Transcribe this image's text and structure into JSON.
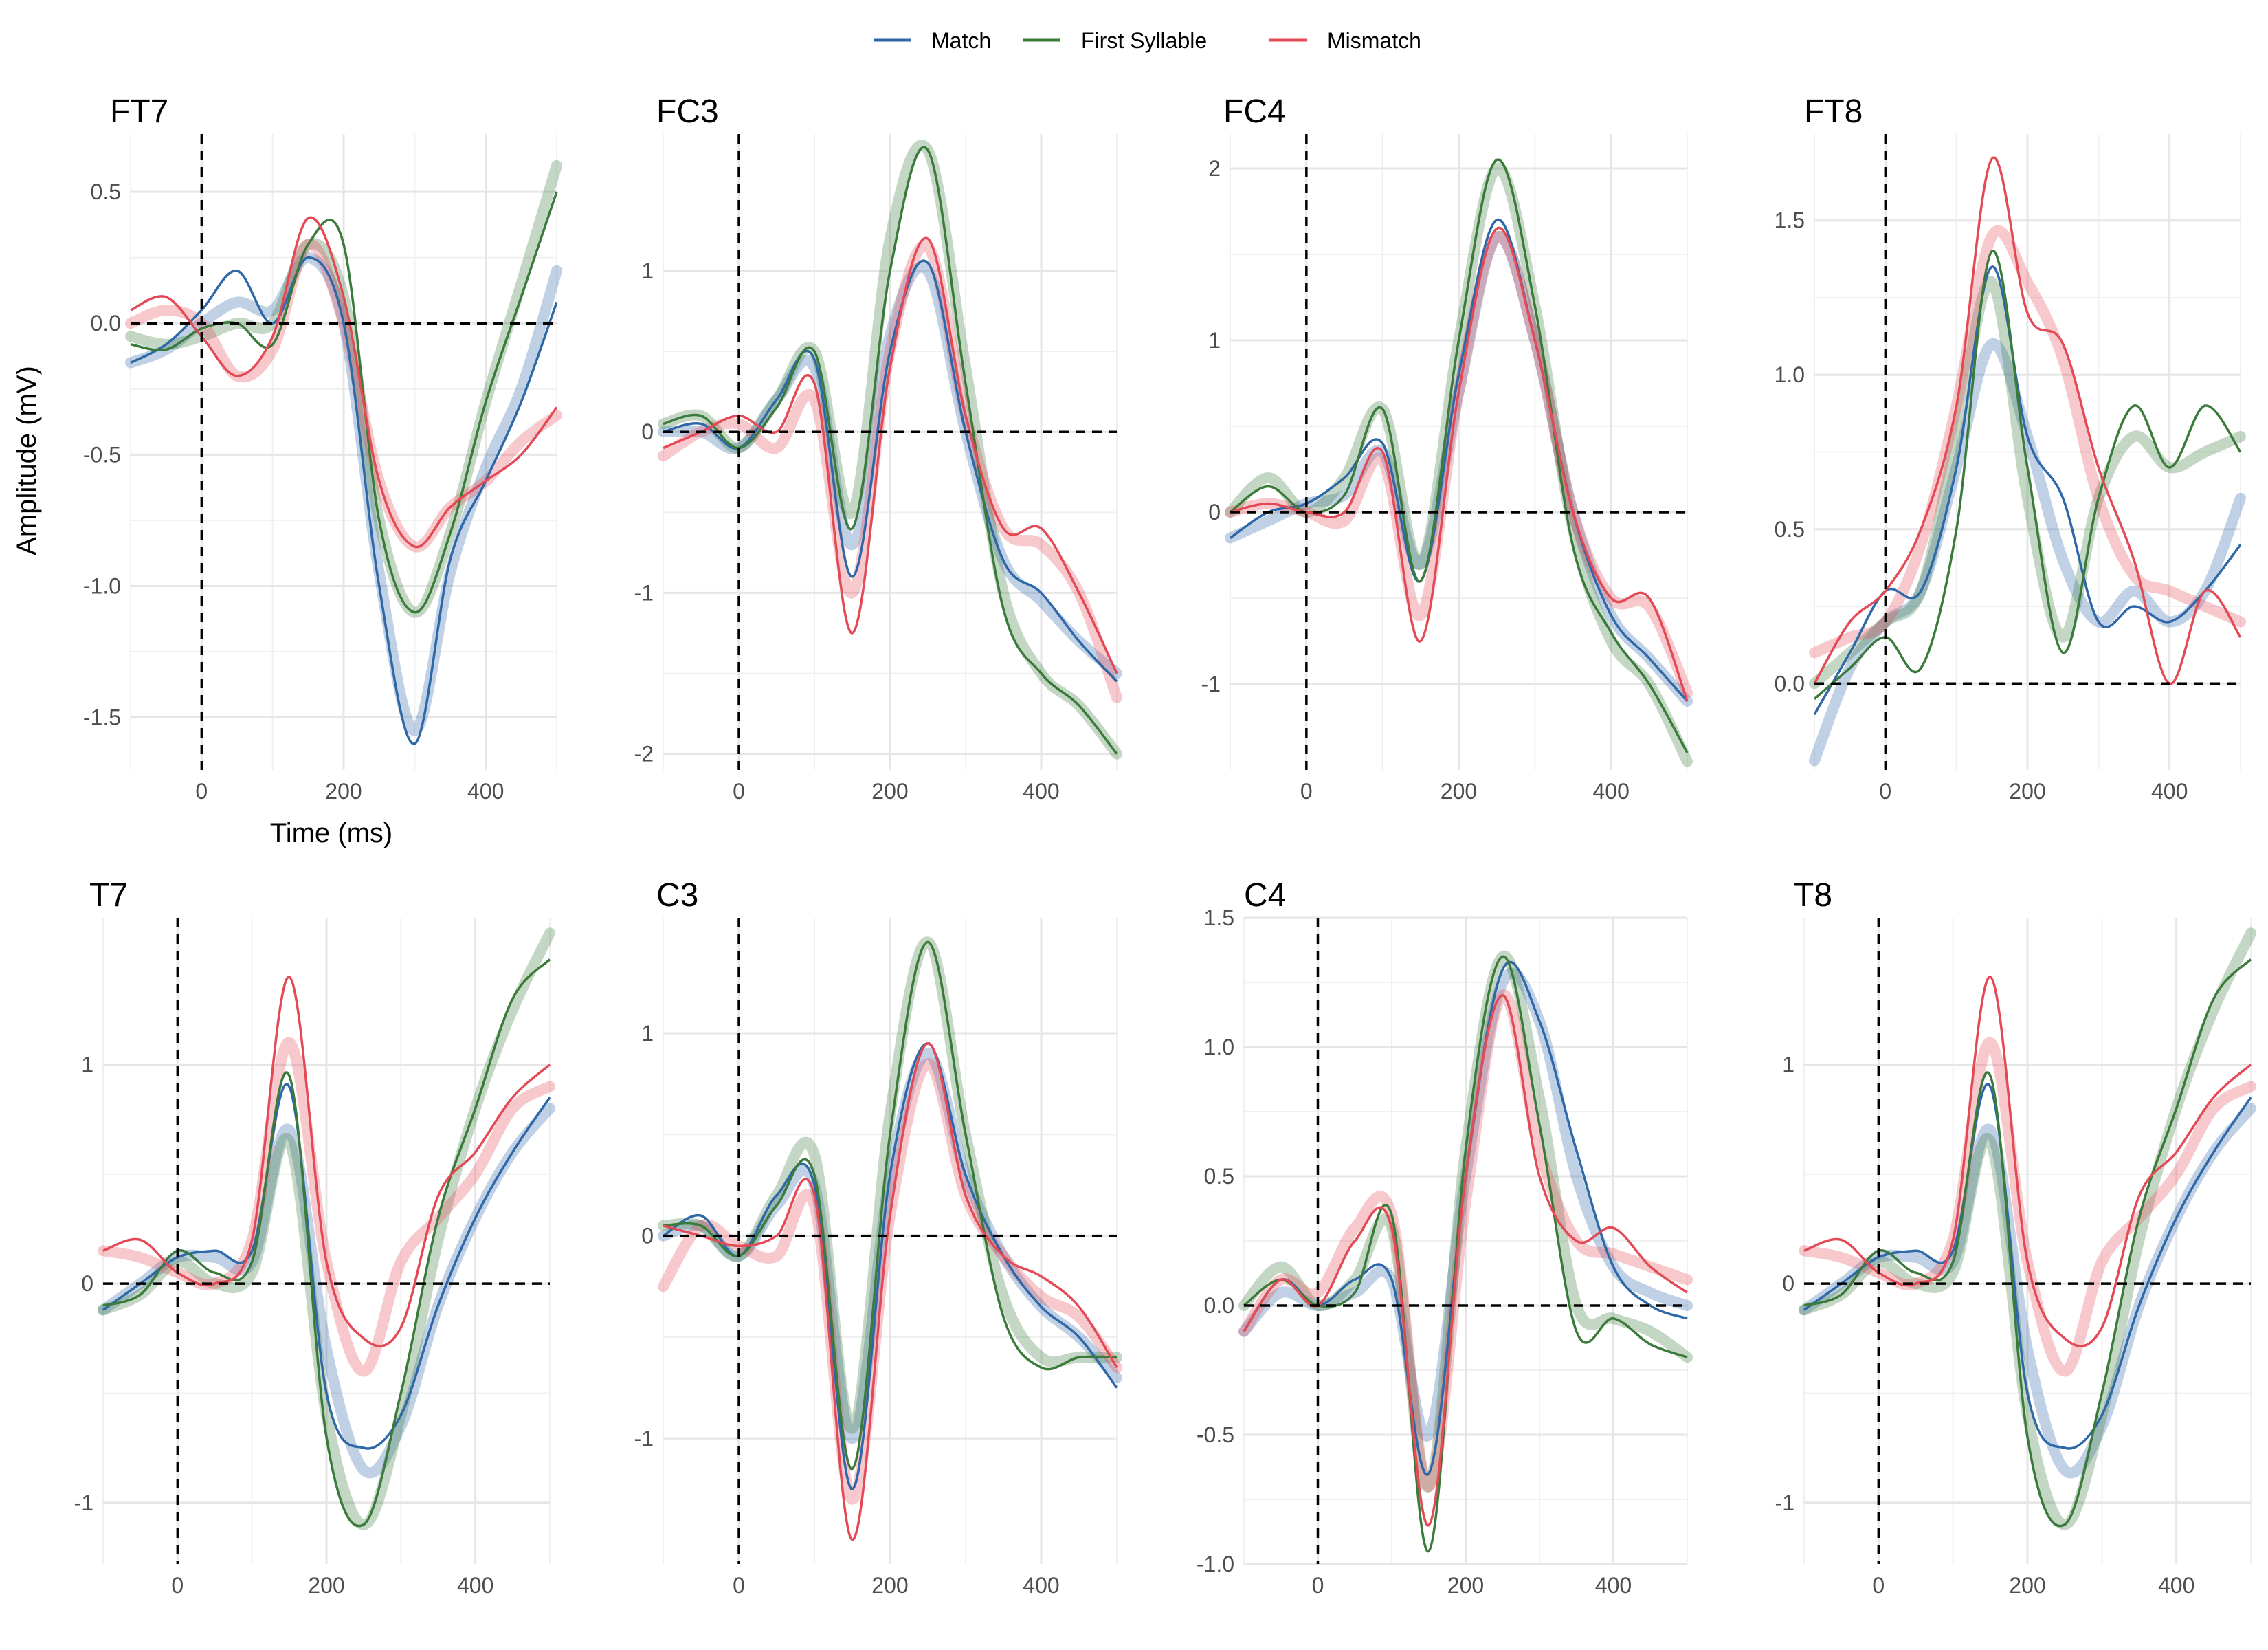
{
  "legend": {
    "items": [
      {
        "label": "Match",
        "color": "#2E68A8"
      },
      {
        "label": "First Syllable",
        "color": "#3A7A3A"
      },
      {
        "label": "Mismatch",
        "color": "#E34A55"
      }
    ]
  },
  "chart_data": [
    {
      "type": "line",
      "title": "FT7",
      "xlabel": "Time (ms)",
      "ylabel": "Amplitude (mV)",
      "xlim": [
        -100,
        500
      ],
      "ylim": [
        -1.7,
        0.72
      ],
      "xticks": [
        0,
        200,
        400
      ],
      "xtick_labels": [
        "0",
        "200",
        "400"
      ],
      "yticks": [
        0.5,
        0.0,
        -0.5,
        -1.0,
        -1.5
      ],
      "ytick_labels": [
        "0.5",
        "0.0",
        "-0.5",
        "-1.0",
        "-1.5"
      ],
      "x": [
        -100,
        -50,
        0,
        50,
        100,
        150,
        200,
        250,
        300,
        350,
        400,
        450,
        500
      ],
      "series": [
        {
          "name": "Match",
          "values": [
            -0.15,
            -0.08,
            0.05,
            0.2,
            0.0,
            0.25,
            0.0,
            -1.0,
            -1.6,
            -0.9,
            -0.6,
            -0.3,
            0.08
          ],
          "smooth": [
            -0.15,
            -0.1,
            0.0,
            0.08,
            0.05,
            0.25,
            0.0,
            -0.95,
            -1.55,
            -0.95,
            -0.55,
            -0.25,
            0.2
          ]
        },
        {
          "name": "First Syllable",
          "values": [
            -0.08,
            -0.1,
            -0.02,
            0.0,
            -0.08,
            0.3,
            0.3,
            -0.75,
            -1.1,
            -0.8,
            -0.3,
            0.1,
            0.5
          ],
          "smooth": [
            -0.05,
            -0.08,
            -0.05,
            0.0,
            0.0,
            0.3,
            0.1,
            -0.75,
            -1.1,
            -0.8,
            -0.3,
            0.15,
            0.6
          ]
        },
        {
          "name": "Mismatch",
          "values": [
            0.05,
            0.1,
            -0.05,
            -0.2,
            -0.05,
            0.4,
            0.1,
            -0.6,
            -0.85,
            -0.7,
            -0.6,
            -0.5,
            -0.32
          ],
          "smooth": [
            0.0,
            0.05,
            0.0,
            -0.2,
            -0.1,
            0.3,
            0.0,
            -0.6,
            -0.85,
            -0.7,
            -0.6,
            -0.45,
            -0.35
          ]
        }
      ]
    },
    {
      "type": "line",
      "title": "FC3",
      "xlabel": "",
      "ylabel": "",
      "xlim": [
        -100,
        500
      ],
      "ylim": [
        -2.1,
        1.85
      ],
      "xticks": [
        0,
        200,
        400
      ],
      "xtick_labels": [
        "0",
        "200",
        "400"
      ],
      "yticks": [
        1,
        0,
        -1,
        -2
      ],
      "ytick_labels": [
        "1",
        "0",
        "-1",
        "-2"
      ],
      "x": [
        -100,
        -50,
        0,
        50,
        100,
        150,
        200,
        250,
        300,
        350,
        400,
        450,
        500
      ],
      "series": [
        {
          "name": "Match",
          "values": [
            0.0,
            0.05,
            -0.1,
            0.2,
            0.45,
            -0.9,
            0.5,
            1.05,
            0.0,
            -0.8,
            -1.0,
            -1.3,
            -1.55
          ],
          "smooth": [
            0.0,
            0.0,
            -0.1,
            0.2,
            0.4,
            -0.7,
            0.6,
            1.0,
            0.0,
            -0.8,
            -1.05,
            -1.3,
            -1.5
          ]
        },
        {
          "name": "First Syllable",
          "values": [
            0.05,
            0.1,
            -0.1,
            0.15,
            0.5,
            -0.6,
            1.0,
            1.75,
            0.3,
            -1.1,
            -1.5,
            -1.7,
            -2.0
          ],
          "smooth": [
            0.05,
            0.1,
            -0.1,
            0.2,
            0.5,
            -0.5,
            1.2,
            1.75,
            0.4,
            -1.0,
            -1.5,
            -1.7,
            -2.0
          ]
        },
        {
          "name": "Mismatch",
          "values": [
            -0.1,
            0.0,
            0.1,
            0.0,
            0.3,
            -1.25,
            0.4,
            1.2,
            0.1,
            -0.6,
            -0.6,
            -1.0,
            -1.5
          ],
          "smooth": [
            -0.15,
            0.0,
            0.05,
            -0.1,
            0.2,
            -1.0,
            0.5,
            1.15,
            0.1,
            -0.6,
            -0.7,
            -1.0,
            -1.65
          ]
        }
      ]
    },
    {
      "type": "line",
      "title": "FC4",
      "xlabel": "",
      "ylabel": "",
      "xlim": [
        -100,
        500
      ],
      "ylim": [
        -1.5,
        2.2
      ],
      "xticks": [
        0,
        200,
        400
      ],
      "xtick_labels": [
        "0",
        "200",
        "400"
      ],
      "yticks": [
        2,
        1,
        0,
        -1
      ],
      "ytick_labels": [
        "2",
        "1",
        "0",
        "-1"
      ],
      "x": [
        -100,
        -50,
        0,
        50,
        100,
        150,
        200,
        250,
        300,
        350,
        400,
        450,
        500
      ],
      "series": [
        {
          "name": "Match",
          "values": [
            -0.15,
            0.0,
            0.05,
            0.2,
            0.4,
            -0.4,
            0.8,
            1.7,
            1.0,
            0.0,
            -0.6,
            -0.85,
            -1.1
          ],
          "smooth": [
            -0.15,
            -0.05,
            0.05,
            0.1,
            0.35,
            -0.3,
            0.7,
            1.6,
            1.0,
            0.0,
            -0.6,
            -0.85,
            -1.1
          ]
        },
        {
          "name": "First Syllable",
          "values": [
            0.0,
            0.15,
            0.0,
            0.1,
            0.6,
            -0.4,
            1.0,
            2.05,
            1.2,
            -0.2,
            -0.7,
            -1.0,
            -1.4
          ],
          "smooth": [
            0.0,
            0.2,
            0.0,
            0.2,
            0.6,
            -0.3,
            1.0,
            2.0,
            1.2,
            -0.1,
            -0.75,
            -1.0,
            -1.45
          ]
        },
        {
          "name": "Mismatch",
          "values": [
            0.0,
            0.05,
            0.0,
            0.0,
            0.35,
            -0.75,
            0.7,
            1.65,
            1.0,
            0.0,
            -0.5,
            -0.5,
            -1.1
          ],
          "smooth": [
            0.0,
            0.05,
            0.0,
            -0.05,
            0.3,
            -0.6,
            0.7,
            1.6,
            1.0,
            0.0,
            -0.5,
            -0.55,
            -1.05
          ]
        }
      ]
    },
    {
      "type": "line",
      "title": "FT8",
      "xlabel": "",
      "ylabel": "",
      "xlim": [
        -100,
        500
      ],
      "ylim": [
        -0.28,
        1.78
      ],
      "xticks": [
        0,
        200,
        400
      ],
      "xtick_labels": [
        "0",
        "200",
        "400"
      ],
      "yticks": [
        1.5,
        1.0,
        0.5,
        0.0
      ],
      "ytick_labels": [
        "1.5",
        "1.0",
        "0.5",
        "0.0"
      ],
      "x": [
        -100,
        -50,
        0,
        50,
        100,
        150,
        200,
        250,
        300,
        350,
        400,
        450,
        500
      ],
      "series": [
        {
          "name": "Match",
          "values": [
            -0.1,
            0.1,
            0.3,
            0.3,
            0.7,
            1.35,
            0.8,
            0.6,
            0.2,
            0.25,
            0.2,
            0.3,
            0.45
          ],
          "smooth": [
            -0.25,
            0.05,
            0.2,
            0.3,
            0.7,
            1.1,
            0.8,
            0.4,
            0.2,
            0.3,
            0.2,
            0.3,
            0.6
          ]
        },
        {
          "name": "First Syllable",
          "values": [
            -0.05,
            0.05,
            0.15,
            0.05,
            0.5,
            1.4,
            0.7,
            0.1,
            0.6,
            0.9,
            0.7,
            0.9,
            0.75
          ],
          "smooth": [
            0.0,
            0.1,
            0.2,
            0.3,
            0.8,
            1.3,
            0.6,
            0.15,
            0.6,
            0.8,
            0.7,
            0.75,
            0.8
          ]
        },
        {
          "name": "Mismatch",
          "values": [
            0.0,
            0.2,
            0.3,
            0.5,
            0.9,
            1.7,
            1.2,
            1.1,
            0.7,
            0.4,
            0.0,
            0.3,
            0.15
          ],
          "smooth": [
            0.1,
            0.15,
            0.2,
            0.45,
            0.9,
            1.45,
            1.3,
            1.05,
            0.6,
            0.35,
            0.3,
            0.25,
            0.2
          ]
        }
      ]
    },
    {
      "type": "line",
      "title": "T7",
      "xlabel": "",
      "ylabel": "",
      "xlim": [
        -100,
        500
      ],
      "ylim": [
        -1.28,
        1.67
      ],
      "xticks": [
        0,
        200,
        400
      ],
      "xtick_labels": [
        "0",
        "200",
        "400"
      ],
      "yticks": [
        1,
        0,
        -1
      ],
      "ytick_labels": [
        "1",
        "0",
        "-1"
      ],
      "x": [
        -100,
        -50,
        0,
        50,
        100,
        150,
        200,
        250,
        300,
        350,
        400,
        450,
        500
      ],
      "series": [
        {
          "name": "Match",
          "values": [
            -0.12,
            0.0,
            0.12,
            0.15,
            0.15,
            0.9,
            -0.5,
            -0.75,
            -0.6,
            -0.1,
            0.3,
            0.6,
            0.85
          ],
          "smooth": [
            -0.12,
            0.0,
            0.12,
            0.12,
            0.1,
            0.7,
            -0.3,
            -0.85,
            -0.65,
            -0.1,
            0.3,
            0.6,
            0.8
          ]
        },
        {
          "name": "First Syllable",
          "values": [
            -0.1,
            -0.05,
            0.15,
            0.05,
            0.1,
            0.95,
            -0.7,
            -1.1,
            -0.5,
            0.3,
            0.8,
            1.3,
            1.48
          ],
          "smooth": [
            -0.12,
            -0.05,
            0.1,
            0.0,
            0.05,
            0.65,
            -0.6,
            -1.1,
            -0.6,
            0.2,
            0.8,
            1.25,
            1.6
          ]
        },
        {
          "name": "Mismatch",
          "values": [
            0.15,
            0.2,
            0.05,
            0.0,
            0.2,
            1.4,
            0.1,
            -0.25,
            -0.2,
            0.4,
            0.6,
            0.85,
            1.0
          ],
          "smooth": [
            0.15,
            0.12,
            0.05,
            0.0,
            0.2,
            1.1,
            0.1,
            -0.4,
            0.1,
            0.3,
            0.5,
            0.8,
            0.9
          ]
        }
      ]
    },
    {
      "type": "line",
      "title": "C3",
      "xlabel": "",
      "ylabel": "",
      "xlim": [
        -100,
        500
      ],
      "ylim": [
        -1.62,
        1.57
      ],
      "xticks": [
        0,
        200,
        400
      ],
      "xtick_labels": [
        "0",
        "200",
        "400"
      ],
      "yticks": [
        1,
        0,
        -1
      ],
      "ytick_labels": [
        "1",
        "0",
        "-1"
      ],
      "x": [
        -100,
        -50,
        0,
        50,
        100,
        150,
        200,
        250,
        300,
        350,
        400,
        450,
        500
      ],
      "series": [
        {
          "name": "Match",
          "values": [
            0.0,
            0.1,
            -0.1,
            0.2,
            0.25,
            -1.25,
            0.3,
            0.95,
            0.3,
            -0.1,
            -0.35,
            -0.5,
            -0.75
          ],
          "smooth": [
            0.0,
            0.05,
            -0.1,
            0.15,
            0.25,
            -1.0,
            0.3,
            0.9,
            0.3,
            -0.1,
            -0.35,
            -0.5,
            -0.7
          ]
        },
        {
          "name": "First Syllable",
          "values": [
            0.05,
            0.05,
            -0.1,
            0.15,
            0.3,
            -1.15,
            0.5,
            1.45,
            0.5,
            -0.4,
            -0.65,
            -0.6,
            -0.6
          ],
          "smooth": [
            0.05,
            0.05,
            -0.1,
            0.2,
            0.4,
            -0.95,
            0.6,
            1.45,
            0.5,
            -0.3,
            -0.6,
            -0.6,
            -0.6
          ]
        },
        {
          "name": "Mismatch",
          "values": [
            0.05,
            0.0,
            -0.05,
            0.0,
            0.2,
            -1.5,
            0.1,
            0.95,
            0.2,
            -0.1,
            -0.2,
            -0.35,
            -0.65
          ],
          "smooth": [
            -0.25,
            0.05,
            -0.05,
            -0.1,
            0.15,
            -1.3,
            0.1,
            0.85,
            0.2,
            -0.1,
            -0.3,
            -0.4,
            -0.65
          ]
        }
      ]
    },
    {
      "type": "line",
      "title": "C4",
      "xlabel": "",
      "ylabel": "",
      "xlim": [
        -100,
        500
      ],
      "ylim": [
        -1.0,
        1.5
      ],
      "xticks": [
        0,
        200,
        400
      ],
      "xtick_labels": [
        "0",
        "200",
        "400"
      ],
      "yticks": [
        1.5,
        1.0,
        0.5,
        0.0,
        -0.5,
        -1.0
      ],
      "ytick_labels": [
        "1.5",
        "1.0",
        "0.5",
        "0.0",
        "-0.5",
        "-1.0"
      ],
      "x": [
        -100,
        -50,
        0,
        50,
        100,
        150,
        200,
        250,
        300,
        350,
        400,
        450,
        500
      ],
      "series": [
        {
          "name": "Match",
          "values": [
            -0.1,
            0.1,
            0.0,
            0.1,
            0.1,
            -0.65,
            0.5,
            1.3,
            1.1,
            0.6,
            0.15,
            0.0,
            -0.05
          ],
          "smooth": [
            -0.1,
            0.05,
            0.0,
            0.05,
            0.1,
            -0.5,
            0.5,
            1.25,
            1.1,
            0.5,
            0.15,
            0.05,
            0.0
          ]
        },
        {
          "name": "First Syllable",
          "values": [
            0.0,
            0.1,
            0.0,
            0.05,
            0.35,
            -0.95,
            0.6,
            1.35,
            0.7,
            -0.1,
            -0.05,
            -0.15,
            -0.2
          ],
          "smooth": [
            0.0,
            0.15,
            0.0,
            0.1,
            0.3,
            -0.7,
            0.6,
            1.35,
            0.8,
            0.0,
            -0.05,
            -0.1,
            -0.2
          ]
        },
        {
          "name": "Mismatch",
          "values": [
            -0.1,
            0.1,
            0.0,
            0.25,
            0.3,
            -0.85,
            0.5,
            1.2,
            0.5,
            0.25,
            0.3,
            0.15,
            0.05
          ],
          "smooth": [
            -0.1,
            0.1,
            0.05,
            0.3,
            0.35,
            -0.7,
            0.4,
            1.2,
            0.6,
            0.25,
            0.2,
            0.15,
            0.1
          ]
        }
      ]
    },
    {
      "type": "line",
      "title": "T8",
      "xlabel": "",
      "ylabel": "",
      "xlim": [
        -100,
        500
      ],
      "ylim": [
        -1.28,
        1.67
      ],
      "xticks": [
        0,
        200,
        400
      ],
      "xtick_labels": [
        "0",
        "200",
        "400"
      ],
      "yticks": [
        1,
        0,
        -1
      ],
      "ytick_labels": [
        "1",
        "0",
        "-1"
      ],
      "x": [
        -100,
        -50,
        0,
        50,
        100,
        150,
        200,
        250,
        300,
        350,
        400,
        450,
        500
      ],
      "series": [
        {
          "name": "Match",
          "values": [
            -0.12,
            0.0,
            0.12,
            0.15,
            0.15,
            0.9,
            -0.5,
            -0.75,
            -0.6,
            -0.1,
            0.3,
            0.6,
            0.85
          ],
          "smooth": [
            -0.12,
            0.0,
            0.12,
            0.12,
            0.1,
            0.7,
            -0.3,
            -0.85,
            -0.65,
            -0.1,
            0.3,
            0.6,
            0.8
          ]
        },
        {
          "name": "First Syllable",
          "values": [
            -0.1,
            -0.05,
            0.15,
            0.05,
            0.1,
            0.95,
            -0.7,
            -1.1,
            -0.5,
            0.3,
            0.8,
            1.3,
            1.48
          ],
          "smooth": [
            -0.12,
            -0.05,
            0.1,
            0.0,
            0.05,
            0.65,
            -0.6,
            -1.1,
            -0.6,
            0.2,
            0.8,
            1.25,
            1.6
          ]
        },
        {
          "name": "Mismatch",
          "values": [
            0.15,
            0.2,
            0.05,
            0.0,
            0.2,
            1.4,
            0.1,
            -0.25,
            -0.2,
            0.4,
            0.6,
            0.85,
            1.0
          ],
          "smooth": [
            0.15,
            0.12,
            0.05,
            0.0,
            0.2,
            1.1,
            0.1,
            -0.4,
            0.1,
            0.3,
            0.5,
            0.8,
            0.9
          ]
        }
      ]
    }
  ]
}
